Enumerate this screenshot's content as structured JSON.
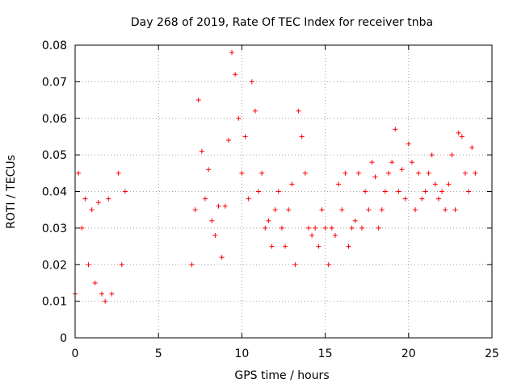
{
  "chart_data": {
    "type": "scatter",
    "title": "Day 268 of 2019, Rate Of TEC Index for receiver tnba",
    "xlabel": "GPS time / hours",
    "ylabel": "ROTI / TECUs",
    "xlim": [
      0,
      25
    ],
    "ylim": [
      0,
      0.08
    ],
    "x_ticks": [
      "0",
      "5",
      "10",
      "15",
      "20",
      "25"
    ],
    "y_ticks": [
      "0",
      "0.01",
      "0.02",
      "0.03",
      "0.04",
      "0.05",
      "0.06",
      "0.07",
      "0.08"
    ],
    "grid": true,
    "marker": "+",
    "color": "#ff0000",
    "series": [
      {
        "x": [
          0.0,
          0.2,
          0.4,
          0.6,
          0.8,
          1.0,
          1.2,
          1.4,
          1.6,
          1.8,
          2.0,
          2.2,
          2.6,
          2.8,
          3.0,
          7.0,
          7.2,
          7.4,
          7.6,
          7.8,
          8.0,
          8.2,
          8.4,
          8.6,
          8.8,
          9.0,
          9.2,
          9.4,
          9.6,
          9.8,
          10.0,
          10.2,
          10.4,
          10.6,
          10.8,
          11.0,
          11.2,
          11.4,
          11.6,
          11.8,
          12.0,
          12.2,
          12.4,
          12.6,
          12.8,
          13.0,
          13.2,
          13.4,
          13.6,
          13.8,
          14.0,
          14.2,
          14.4,
          14.6,
          14.8,
          15.0,
          15.2,
          15.4,
          15.6,
          15.8,
          16.0,
          16.2,
          16.4,
          16.6,
          16.8,
          17.0,
          17.2,
          17.4,
          17.6,
          17.8,
          18.0,
          18.2,
          18.4,
          18.6,
          18.8,
          19.0,
          19.2,
          19.4,
          19.6,
          19.8,
          20.0,
          20.2,
          20.4,
          20.6,
          20.8,
          21.0,
          21.2,
          21.4,
          21.6,
          21.8,
          22.0,
          22.2,
          22.4,
          22.6,
          22.8,
          23.0,
          23.2,
          23.4,
          23.6,
          23.8,
          24.0
        ],
        "y": [
          0.012,
          0.045,
          0.03,
          0.038,
          0.02,
          0.035,
          0.015,
          0.037,
          0.012,
          0.01,
          0.038,
          0.012,
          0.045,
          0.02,
          0.04,
          0.02,
          0.035,
          0.065,
          0.051,
          0.038,
          0.046,
          0.032,
          0.028,
          0.036,
          0.022,
          0.036,
          0.054,
          0.078,
          0.072,
          0.06,
          0.045,
          0.055,
          0.038,
          0.07,
          0.062,
          0.04,
          0.045,
          0.03,
          0.032,
          0.025,
          0.035,
          0.04,
          0.03,
          0.025,
          0.035,
          0.042,
          0.02,
          0.062,
          0.055,
          0.045,
          0.03,
          0.028,
          0.03,
          0.025,
          0.035,
          0.03,
          0.02,
          0.03,
          0.028,
          0.042,
          0.035,
          0.045,
          0.025,
          0.03,
          0.032,
          0.045,
          0.03,
          0.04,
          0.035,
          0.048,
          0.044,
          0.03,
          0.035,
          0.04,
          0.045,
          0.048,
          0.057,
          0.04,
          0.046,
          0.038,
          0.053,
          0.048,
          0.035,
          0.045,
          0.038,
          0.04,
          0.045,
          0.05,
          0.042,
          0.038,
          0.04,
          0.035,
          0.042,
          0.05,
          0.035,
          0.056,
          0.055,
          0.045,
          0.04,
          0.052,
          0.045
        ]
      }
    ]
  }
}
